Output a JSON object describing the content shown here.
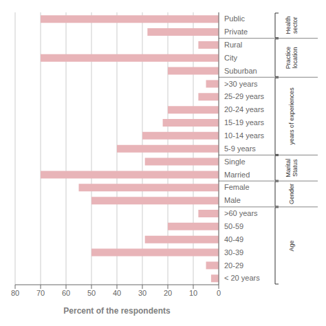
{
  "chart_data": {
    "type": "bar",
    "orientation": "horizontal",
    "categories": [
      "Public",
      "Private",
      "Rural",
      "City",
      "Suburban",
      ">30 years",
      "25-29 years",
      "20-24 years",
      "15-19 years",
      "10-14 years",
      "5-9 years",
      "Single",
      "Married",
      "Female",
      "Male",
      ">60 years",
      "50-59",
      "40-49",
      "30-39",
      "20-29",
      "< 20 years"
    ],
    "values": [
      70,
      28,
      8,
      70,
      20,
      5,
      8,
      20,
      22,
      30,
      40,
      29,
      70,
      55,
      50,
      8,
      20,
      29,
      50,
      5,
      3
    ],
    "color": "#e8b4b8",
    "xlabel": "Percent of the respondents",
    "xlim": [
      80,
      0
    ],
    "xticks": [
      80,
      70,
      60,
      50,
      40,
      30,
      20,
      10,
      0
    ],
    "grid": true,
    "annotations": [
      {
        "text": "Health\nsector",
        "from": "Public",
        "to": "Private"
      },
      {
        "text": "Practice\nlocation",
        "from": "Rural",
        "to": "Suburban"
      },
      {
        "text": "years of experiences",
        "from": ">30 years",
        "to": "5-9 years"
      },
      {
        "text": "Marital\nStatus",
        "from": "Single",
        "to": "Married"
      },
      {
        "text": "Gender",
        "from": "Female",
        "to": "Male"
      },
      {
        "text": "Age",
        "from": ">60 years",
        "to": "< 20 years"
      }
    ]
  }
}
